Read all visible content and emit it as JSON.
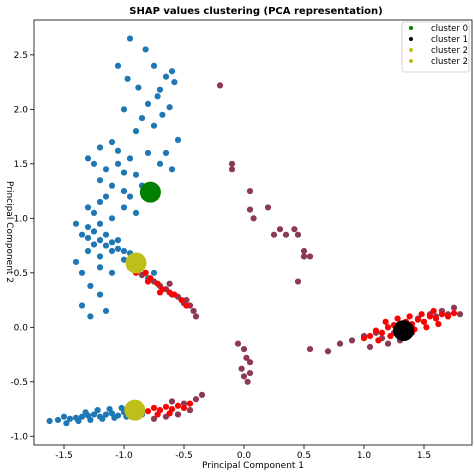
{
  "chart_data": {
    "type": "scatter",
    "title": "SHAP values clustering (PCA representation)",
    "xlabel": "Principal Component 1",
    "ylabel": "Principal Component 2",
    "xlim": [
      -1.75,
      1.9
    ],
    "ylim": [
      -1.08,
      2.82
    ],
    "xticks": [
      -1.5,
      -1.0,
      -0.5,
      0.0,
      0.5,
      1.0,
      1.5
    ],
    "xtick_labels": [
      "-1.5",
      "-1.0",
      "-0.5",
      "0.0",
      "0.5",
      "1.0",
      "1.5"
    ],
    "yticks": [
      -1.0,
      -0.5,
      0.0,
      0.5,
      1.0,
      1.5,
      2.0,
      2.5
    ],
    "ytick_labels": [
      "-1.0",
      "-0.5",
      "0.0",
      "0.5",
      "1.0",
      "1.5",
      "2.0",
      "2.5"
    ],
    "grid": false,
    "legend_position": "top-right",
    "colors": {
      "blue_group": "#1f77b4",
      "red_group": "#ff0000",
      "maroon_group": "#8b3a52"
    },
    "point_groups": [
      {
        "color": "#1f77b4",
        "description_free": true,
        "points": [
          [
            -1.55,
            -0.85
          ],
          [
            -1.5,
            -0.82
          ],
          [
            -1.45,
            -0.84
          ],
          [
            -1.4,
            -0.83
          ],
          [
            -1.35,
            -0.82
          ],
          [
            -1.3,
            -0.81
          ],
          [
            -1.25,
            -0.8
          ],
          [
            -1.2,
            -0.82
          ],
          [
            -1.15,
            -0.8
          ],
          [
            -1.1,
            -0.79
          ],
          [
            -1.05,
            -0.81
          ],
          [
            -1.0,
            -0.78
          ],
          [
            -0.95,
            -0.8
          ],
          [
            -0.9,
            -0.77
          ],
          [
            -0.85,
            -0.8
          ],
          [
            -1.62,
            -0.86
          ],
          [
            -1.48,
            -0.88
          ],
          [
            -1.38,
            -0.86
          ],
          [
            -1.28,
            -0.85
          ],
          [
            -1.18,
            -0.84
          ],
          [
            -1.08,
            -0.83
          ],
          [
            -0.98,
            -0.82
          ],
          [
            -1.22,
            -0.76
          ],
          [
            -1.12,
            -0.75
          ],
          [
            -1.02,
            -0.74
          ],
          [
            -1.32,
            -0.78
          ],
          [
            -1.2,
            0.95
          ],
          [
            -1.25,
            0.88
          ],
          [
            -1.15,
            0.85
          ],
          [
            -1.3,
            0.82
          ],
          [
            -1.2,
            0.8
          ],
          [
            -1.1,
            0.78
          ],
          [
            -1.05,
            0.72
          ],
          [
            -1.0,
            0.7
          ],
          [
            -0.95,
            0.68
          ],
          [
            -1.1,
            0.7
          ],
          [
            -1.15,
            0.75
          ],
          [
            -1.25,
            0.76
          ],
          [
            -1.3,
            0.7
          ],
          [
            -1.2,
            0.65
          ],
          [
            -1.0,
            0.62
          ],
          [
            -0.9,
            0.65
          ],
          [
            -1.05,
            0.8
          ],
          [
            -1.3,
            0.92
          ],
          [
            -1.35,
            0.85
          ],
          [
            -1.4,
            0.95
          ],
          [
            -1.3,
            1.1
          ],
          [
            -1.25,
            1.05
          ],
          [
            -1.2,
            1.15
          ],
          [
            -1.15,
            1.2
          ],
          [
            -1.1,
            1.3
          ],
          [
            -1.2,
            1.35
          ],
          [
            -1.15,
            1.45
          ],
          [
            -1.05,
            1.5
          ],
          [
            -1.0,
            1.42
          ],
          [
            -0.95,
            1.55
          ],
          [
            -0.9,
            1.4
          ],
          [
            -0.85,
            1.3
          ],
          [
            -1.0,
            1.25
          ],
          [
            -1.1,
            1.0
          ],
          [
            -1.0,
            1.1
          ],
          [
            -0.95,
            1.2
          ],
          [
            -0.9,
            1.05
          ],
          [
            -1.25,
            1.5
          ],
          [
            -1.3,
            1.55
          ],
          [
            -1.05,
            1.62
          ],
          [
            -1.1,
            1.7
          ],
          [
            -1.2,
            1.65
          ],
          [
            -0.95,
            2.65
          ],
          [
            -0.82,
            2.55
          ],
          [
            -0.75,
            2.4
          ],
          [
            -0.65,
            2.3
          ],
          [
            -0.6,
            2.35
          ],
          [
            -0.58,
            2.25
          ],
          [
            -0.7,
            2.18
          ],
          [
            -0.8,
            2.05
          ],
          [
            -0.85,
            1.92
          ],
          [
            -0.75,
            1.85
          ],
          [
            -0.9,
            1.8
          ],
          [
            -0.68,
            1.95
          ],
          [
            -0.62,
            2.02
          ],
          [
            -0.55,
            1.72
          ],
          [
            -0.72,
            2.12
          ],
          [
            -0.88,
            2.2
          ],
          [
            -1.0,
            2.0
          ],
          [
            -1.05,
            2.4
          ],
          [
            -0.97,
            2.28
          ],
          [
            -0.65,
            1.6
          ],
          [
            -0.7,
            1.5
          ],
          [
            -0.6,
            1.45
          ],
          [
            -0.8,
            1.6
          ],
          [
            -1.4,
            0.6
          ],
          [
            -1.2,
            0.55
          ],
          [
            -1.35,
            0.5
          ],
          [
            -1.1,
            0.5
          ],
          [
            -1.28,
            0.38
          ],
          [
            -1.2,
            0.3
          ],
          [
            -1.35,
            0.2
          ],
          [
            -1.15,
            0.15
          ],
          [
            -1.28,
            0.1
          ],
          [
            -0.75,
            0.5
          ],
          [
            -0.8,
            0.45
          ]
        ]
      },
      {
        "color": "#8b3a52",
        "points": [
          [
            -0.2,
            2.22
          ],
          [
            -0.1,
            1.5
          ],
          [
            -0.1,
            1.45
          ],
          [
            0.05,
            1.25
          ],
          [
            0.05,
            1.08
          ],
          [
            0.08,
            1.0
          ],
          [
            0.2,
            1.1
          ],
          [
            0.25,
            0.85
          ],
          [
            0.3,
            0.9
          ],
          [
            0.35,
            0.85
          ],
          [
            0.42,
            0.9
          ],
          [
            0.45,
            0.85
          ],
          [
            0.5,
            0.7
          ],
          [
            0.55,
            0.65
          ],
          [
            0.45,
            0.42
          ],
          [
            0.5,
            0.65
          ],
          [
            -0.95,
            0.55
          ],
          [
            -0.85,
            0.48
          ],
          [
            -0.75,
            0.42
          ],
          [
            -0.7,
            0.38
          ],
          [
            -0.65,
            0.35
          ],
          [
            -0.6,
            0.3
          ],
          [
            -0.55,
            0.28
          ],
          [
            -0.5,
            0.22
          ],
          [
            -0.45,
            0.2
          ],
          [
            -0.42,
            0.15
          ],
          [
            -0.4,
            0.1
          ],
          [
            -0.48,
            0.25
          ],
          [
            -0.62,
            0.4
          ],
          [
            -0.05,
            -0.15
          ],
          [
            0.0,
            -0.2
          ],
          [
            0.02,
            -0.28
          ],
          [
            0.05,
            -0.32
          ],
          [
            -0.02,
            -0.38
          ],
          [
            0.0,
            -0.45
          ],
          [
            0.03,
            -0.5
          ],
          [
            0.05,
            -0.42
          ],
          [
            -0.6,
            -0.68
          ],
          [
            -0.5,
            -0.7
          ],
          [
            -0.4,
            -0.66
          ],
          [
            -0.35,
            -0.62
          ],
          [
            -0.45,
            -0.76
          ],
          [
            -0.55,
            -0.8
          ],
          [
            -0.65,
            -0.82
          ],
          [
            -0.75,
            -0.84
          ],
          [
            0.55,
            -0.2
          ],
          [
            0.7,
            -0.22
          ],
          [
            0.8,
            -0.15
          ],
          [
            0.9,
            -0.12
          ],
          [
            1.0,
            -0.08
          ],
          [
            1.05,
            -0.18
          ],
          [
            1.1,
            -0.05
          ],
          [
            1.15,
            -0.1
          ],
          [
            1.2,
            0.0
          ],
          [
            1.25,
            -0.05
          ],
          [
            1.3,
            0.03
          ],
          [
            1.35,
            0.05
          ],
          [
            1.4,
            0.0
          ],
          [
            1.45,
            0.08
          ],
          [
            1.5,
            0.05
          ],
          [
            1.55,
            0.12
          ],
          [
            1.6,
            0.1
          ],
          [
            1.65,
            0.15
          ],
          [
            1.7,
            0.12
          ],
          [
            1.75,
            0.18
          ],
          [
            1.8,
            0.12
          ],
          [
            1.2,
            -0.15
          ],
          [
            1.3,
            -0.12
          ],
          [
            1.4,
            -0.05
          ]
        ]
      },
      {
        "color": "#ff0000",
        "points": [
          [
            1.0,
            -0.1
          ],
          [
            1.05,
            -0.08
          ],
          [
            1.1,
            -0.03
          ],
          [
            1.15,
            -0.05
          ],
          [
            1.2,
            0.0
          ],
          [
            1.25,
            0.02
          ],
          [
            1.3,
            0.0
          ],
          [
            1.35,
            0.05
          ],
          [
            1.4,
            0.03
          ],
          [
            1.45,
            0.07
          ],
          [
            1.5,
            0.05
          ],
          [
            1.55,
            0.1
          ],
          [
            1.6,
            0.08
          ],
          [
            1.65,
            0.12
          ],
          [
            1.7,
            0.1
          ],
          [
            1.75,
            0.13
          ],
          [
            1.12,
            -0.12
          ],
          [
            1.22,
            -0.08
          ],
          [
            1.32,
            -0.05
          ],
          [
            1.42,
            -0.02
          ],
          [
            1.52,
            0.0
          ],
          [
            1.62,
            0.03
          ],
          [
            1.18,
            0.05
          ],
          [
            1.28,
            0.08
          ],
          [
            1.38,
            0.1
          ],
          [
            1.48,
            0.12
          ],
          [
            1.58,
            0.15
          ],
          [
            -0.95,
            0.6
          ],
          [
            -0.88,
            0.55
          ],
          [
            -0.82,
            0.5
          ],
          [
            -0.78,
            0.45
          ],
          [
            -0.72,
            0.4
          ],
          [
            -0.68,
            0.35
          ],
          [
            -0.62,
            0.32
          ],
          [
            -0.58,
            0.3
          ],
          [
            -0.52,
            0.25
          ],
          [
            -0.48,
            0.2
          ],
          [
            -0.9,
            0.5
          ],
          [
            -0.8,
            0.42
          ],
          [
            -0.7,
            0.32
          ],
          [
            -0.95,
            -0.78
          ],
          [
            -0.9,
            -0.76
          ],
          [
            -0.85,
            -0.75
          ],
          [
            -0.8,
            -0.77
          ],
          [
            -0.75,
            -0.74
          ],
          [
            -0.7,
            -0.76
          ],
          [
            -0.65,
            -0.73
          ],
          [
            -0.6,
            -0.75
          ],
          [
            -0.55,
            -0.72
          ],
          [
            -0.5,
            -0.74
          ],
          [
            -0.45,
            -0.7
          ],
          [
            -0.88,
            -0.82
          ],
          [
            -0.72,
            -0.8
          ],
          [
            -0.62,
            -0.79
          ]
        ]
      }
    ],
    "cluster_centers": [
      {
        "color": "#008000",
        "x": -0.78,
        "y": 1.24
      },
      {
        "color": "#000000",
        "x": 1.33,
        "y": -0.03
      },
      {
        "color": "#bfbf1a",
        "x": -0.9,
        "y": 0.59
      },
      {
        "color": "#bfbf1a",
        "x": -0.91,
        "y": -0.76
      }
    ],
    "series": [
      {
        "name": "cluster 0",
        "color": "#008000"
      },
      {
        "name": "cluster 1",
        "color": "#000000"
      },
      {
        "name": "cluster 2",
        "color": "#bfbf1a"
      },
      {
        "name": "cluster 2",
        "color": "#bfbf1a"
      }
    ]
  }
}
